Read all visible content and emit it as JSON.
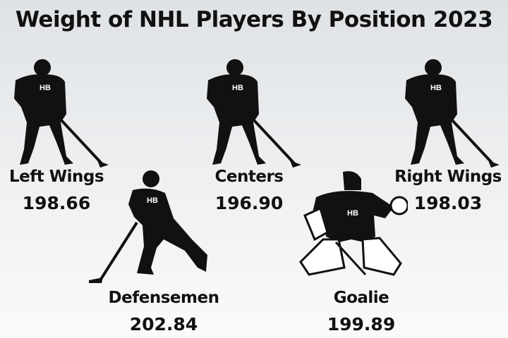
{
  "title": "Weight of NHL Players By Position 2023",
  "logo_text": "HB",
  "colors": {
    "silhouette": "#111111",
    "background": "#e6e8ea",
    "text": "#111111"
  },
  "positions": [
    {
      "name": "Left Wings",
      "weight": "198.66"
    },
    {
      "name": "Centers",
      "weight": "196.90"
    },
    {
      "name": "Right Wings",
      "weight": "198.03"
    },
    {
      "name": "Defensemen",
      "weight": "202.84"
    },
    {
      "name": "Goalie",
      "weight": "199.89"
    }
  ],
  "chart_data": {
    "type": "table",
    "title": "Weight of NHL Players By Position 2023",
    "categories": [
      "Left Wings",
      "Centers",
      "Right Wings",
      "Defensemen",
      "Goalie"
    ],
    "values": [
      198.66,
      196.9,
      198.03,
      202.84,
      199.89
    ]
  }
}
